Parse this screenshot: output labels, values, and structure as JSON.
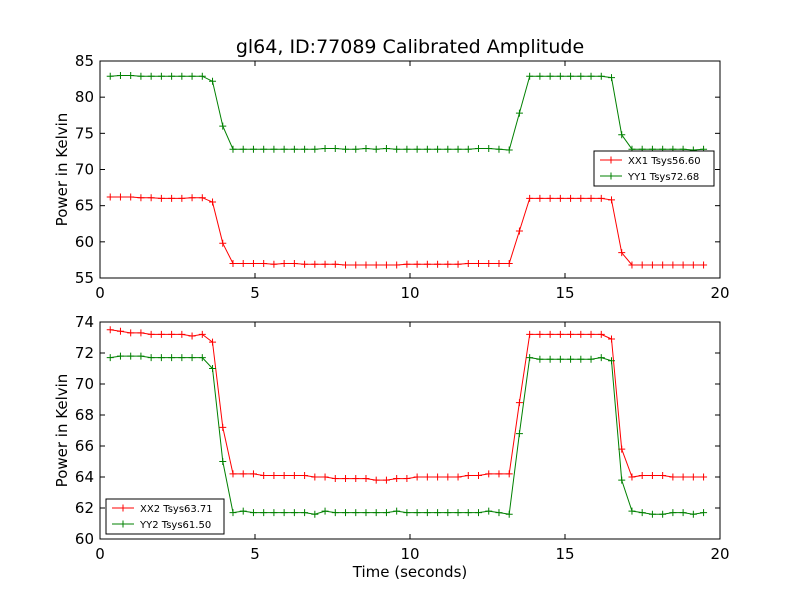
{
  "chart_data": [
    {
      "type": "line",
      "title": "gl64, ID:77089 Calibrated Amplitude",
      "xlabel": "",
      "ylabel": "Power in Kelvin",
      "xlim": [
        0,
        20
      ],
      "ylim": [
        55,
        85
      ],
      "xticks": [
        "0",
        "5",
        "10",
        "15",
        "20"
      ],
      "yticks": [
        "55",
        "60",
        "65",
        "70",
        "75",
        "80",
        "85"
      ],
      "legend": "center-right",
      "x": [
        0.33,
        0.66,
        0.99,
        1.32,
        1.65,
        1.98,
        2.31,
        2.64,
        2.97,
        3.3,
        3.63,
        3.96,
        4.29,
        4.62,
        4.95,
        5.28,
        5.61,
        5.94,
        6.27,
        6.6,
        6.93,
        7.26,
        7.59,
        7.92,
        8.25,
        8.58,
        8.91,
        9.24,
        9.57,
        9.9,
        10.23,
        10.56,
        10.89,
        11.22,
        11.55,
        11.88,
        12.21,
        12.54,
        12.87,
        13.2,
        13.53,
        13.86,
        14.19,
        14.52,
        14.85,
        15.18,
        15.51,
        15.84,
        16.17,
        16.5,
        16.83,
        17.16,
        17.49,
        17.82,
        18.15,
        18.48,
        18.81,
        19.14,
        19.47
      ],
      "series": [
        {
          "name": "XX1 Tsys56.60",
          "color": "#ff0000",
          "values": [
            66.2,
            66.2,
            66.2,
            66.1,
            66.1,
            66.0,
            66.0,
            66.0,
            66.1,
            66.1,
            65.5,
            59.8,
            57.0,
            57.0,
            57.0,
            57.0,
            56.9,
            57.0,
            57.0,
            56.9,
            56.9,
            56.9,
            56.9,
            56.8,
            56.8,
            56.8,
            56.8,
            56.8,
            56.8,
            56.9,
            56.9,
            56.9,
            56.9,
            56.9,
            56.9,
            57.0,
            57.0,
            57.0,
            57.0,
            57.0,
            61.5,
            66.0,
            66.0,
            66.0,
            66.0,
            66.0,
            66.0,
            66.0,
            66.0,
            65.8,
            58.5,
            56.8,
            56.8,
            56.8,
            56.8,
            56.8,
            56.8,
            56.8,
            56.8
          ]
        },
        {
          "name": "YY1 Tsys72.68",
          "color": "#008000",
          "values": [
            82.9,
            83.0,
            83.0,
            82.9,
            82.9,
            82.9,
            82.9,
            82.9,
            82.9,
            82.9,
            82.2,
            76.0,
            72.8,
            72.8,
            72.8,
            72.8,
            72.8,
            72.8,
            72.8,
            72.8,
            72.8,
            72.9,
            72.9,
            72.8,
            72.8,
            72.9,
            72.8,
            72.9,
            72.8,
            72.8,
            72.8,
            72.8,
            72.8,
            72.8,
            72.8,
            72.8,
            72.9,
            72.9,
            72.8,
            72.7,
            77.8,
            82.9,
            82.9,
            82.9,
            82.9,
            82.9,
            82.9,
            82.9,
            82.9,
            82.7,
            74.8,
            72.8,
            72.8,
            72.8,
            72.8,
            72.8,
            72.8,
            72.7,
            72.8
          ]
        }
      ]
    },
    {
      "type": "line",
      "title": "",
      "xlabel": "Time (seconds)",
      "ylabel": "Power in Kelvin",
      "xlim": [
        0,
        20
      ],
      "ylim": [
        60,
        74
      ],
      "xticks": [
        "0",
        "5",
        "10",
        "15",
        "20"
      ],
      "yticks": [
        "60",
        "62",
        "64",
        "66",
        "68",
        "70",
        "72",
        "74"
      ],
      "legend": "lower-left",
      "x": [
        0.33,
        0.66,
        0.99,
        1.32,
        1.65,
        1.98,
        2.31,
        2.64,
        2.97,
        3.3,
        3.63,
        3.96,
        4.29,
        4.62,
        4.95,
        5.28,
        5.61,
        5.94,
        6.27,
        6.6,
        6.93,
        7.26,
        7.59,
        7.92,
        8.25,
        8.58,
        8.91,
        9.24,
        9.57,
        9.9,
        10.23,
        10.56,
        10.89,
        11.22,
        11.55,
        11.88,
        12.21,
        12.54,
        12.87,
        13.2,
        13.53,
        13.86,
        14.19,
        14.52,
        14.85,
        15.18,
        15.51,
        15.84,
        16.17,
        16.5,
        16.83,
        17.16,
        17.49,
        17.82,
        18.15,
        18.48,
        18.81,
        19.14,
        19.47
      ],
      "series": [
        {
          "name": "XX2 Tsys63.71",
          "color": "#ff0000",
          "values": [
            73.5,
            73.4,
            73.3,
            73.3,
            73.2,
            73.2,
            73.2,
            73.2,
            73.1,
            73.2,
            72.7,
            67.2,
            64.2,
            64.2,
            64.2,
            64.1,
            64.1,
            64.1,
            64.1,
            64.1,
            64.0,
            64.0,
            63.9,
            63.9,
            63.9,
            63.9,
            63.8,
            63.8,
            63.9,
            63.9,
            64.0,
            64.0,
            64.0,
            64.0,
            64.0,
            64.1,
            64.1,
            64.2,
            64.2,
            64.2,
            68.8,
            73.2,
            73.2,
            73.2,
            73.2,
            73.2,
            73.2,
            73.2,
            73.2,
            72.9,
            65.8,
            64.0,
            64.1,
            64.1,
            64.1,
            64.0,
            64.0,
            64.0,
            64.0
          ]
        },
        {
          "name": "YY2 Tsys61.50",
          "color": "#008000",
          "values": [
            71.7,
            71.8,
            71.8,
            71.8,
            71.7,
            71.7,
            71.7,
            71.7,
            71.7,
            71.7,
            71.0,
            65.0,
            61.7,
            61.8,
            61.7,
            61.7,
            61.7,
            61.7,
            61.7,
            61.7,
            61.6,
            61.8,
            61.7,
            61.7,
            61.7,
            61.7,
            61.7,
            61.7,
            61.8,
            61.7,
            61.7,
            61.7,
            61.7,
            61.7,
            61.7,
            61.7,
            61.7,
            61.8,
            61.7,
            61.6,
            66.8,
            71.7,
            71.6,
            71.6,
            71.6,
            71.6,
            71.6,
            71.6,
            71.7,
            71.5,
            63.8,
            61.8,
            61.7,
            61.6,
            61.6,
            61.7,
            61.7,
            61.6,
            61.7
          ]
        }
      ]
    }
  ]
}
